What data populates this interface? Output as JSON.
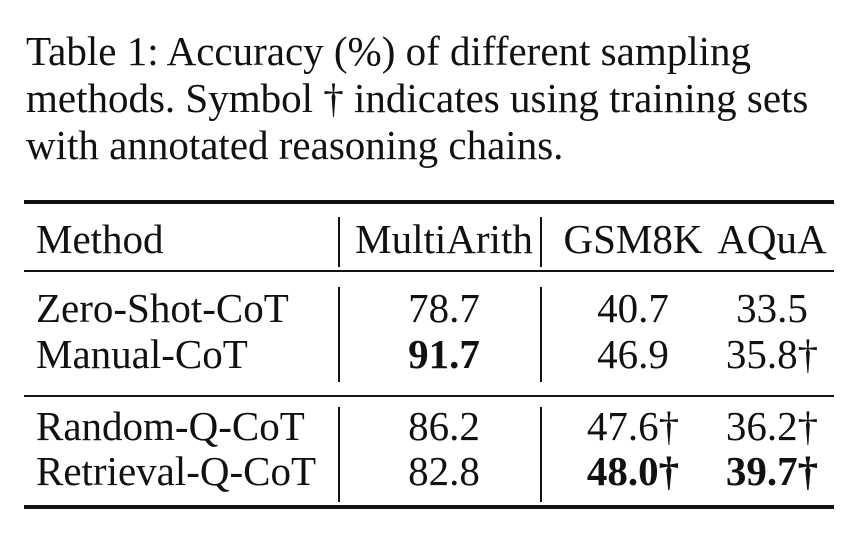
{
  "caption": "Table 1: Accuracy (%) of different sampling methods. Symbol † indicates using training sets with annotated reasoning chains.",
  "table": {
    "headers": [
      "Method",
      "MultiArith",
      "GSM8K",
      "AQuA"
    ],
    "rows": [
      {
        "method": "Zero-Shot-CoT",
        "multiarith": "78.7",
        "gsm8k": "40.7",
        "aqua": "33.5"
      },
      {
        "method": "Manual-CoT",
        "multiarith": "91.7",
        "gsm8k": "46.9",
        "aqua": "35.8†"
      },
      {
        "method": "Random-Q-CoT",
        "multiarith": "86.2",
        "gsm8k": "47.6†",
        "aqua": "36.2†"
      },
      {
        "method": "Retrieval-Q-CoT",
        "multiarith": "82.8",
        "gsm8k": "48.0†",
        "aqua": "39.7†"
      }
    ],
    "bold_cells": [
      "Manual-CoT MultiArith",
      "Retrieval-Q-CoT GSM8K",
      "Retrieval-Q-CoT AQuA"
    ]
  }
}
